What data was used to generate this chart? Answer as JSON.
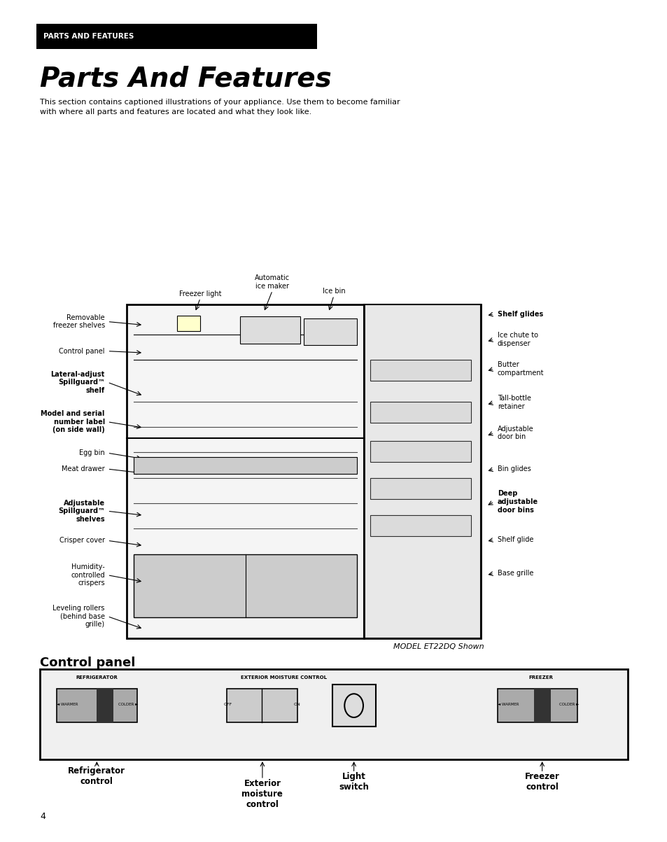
{
  "bg_color": "#ffffff",
  "header_text": "PARTS AND FEATURES",
  "header_bg": "#000000",
  "header_fg": "#ffffff",
  "title": "Parts And Features",
  "description": "This section contains captioned illustrations of your appliance. Use them to become familiar\nwith where all parts and features are located and what they look like.",
  "model_text": "MODEL ET22DQ Shown",
  "control_panel_title": "Control panel",
  "page_number": "4"
}
